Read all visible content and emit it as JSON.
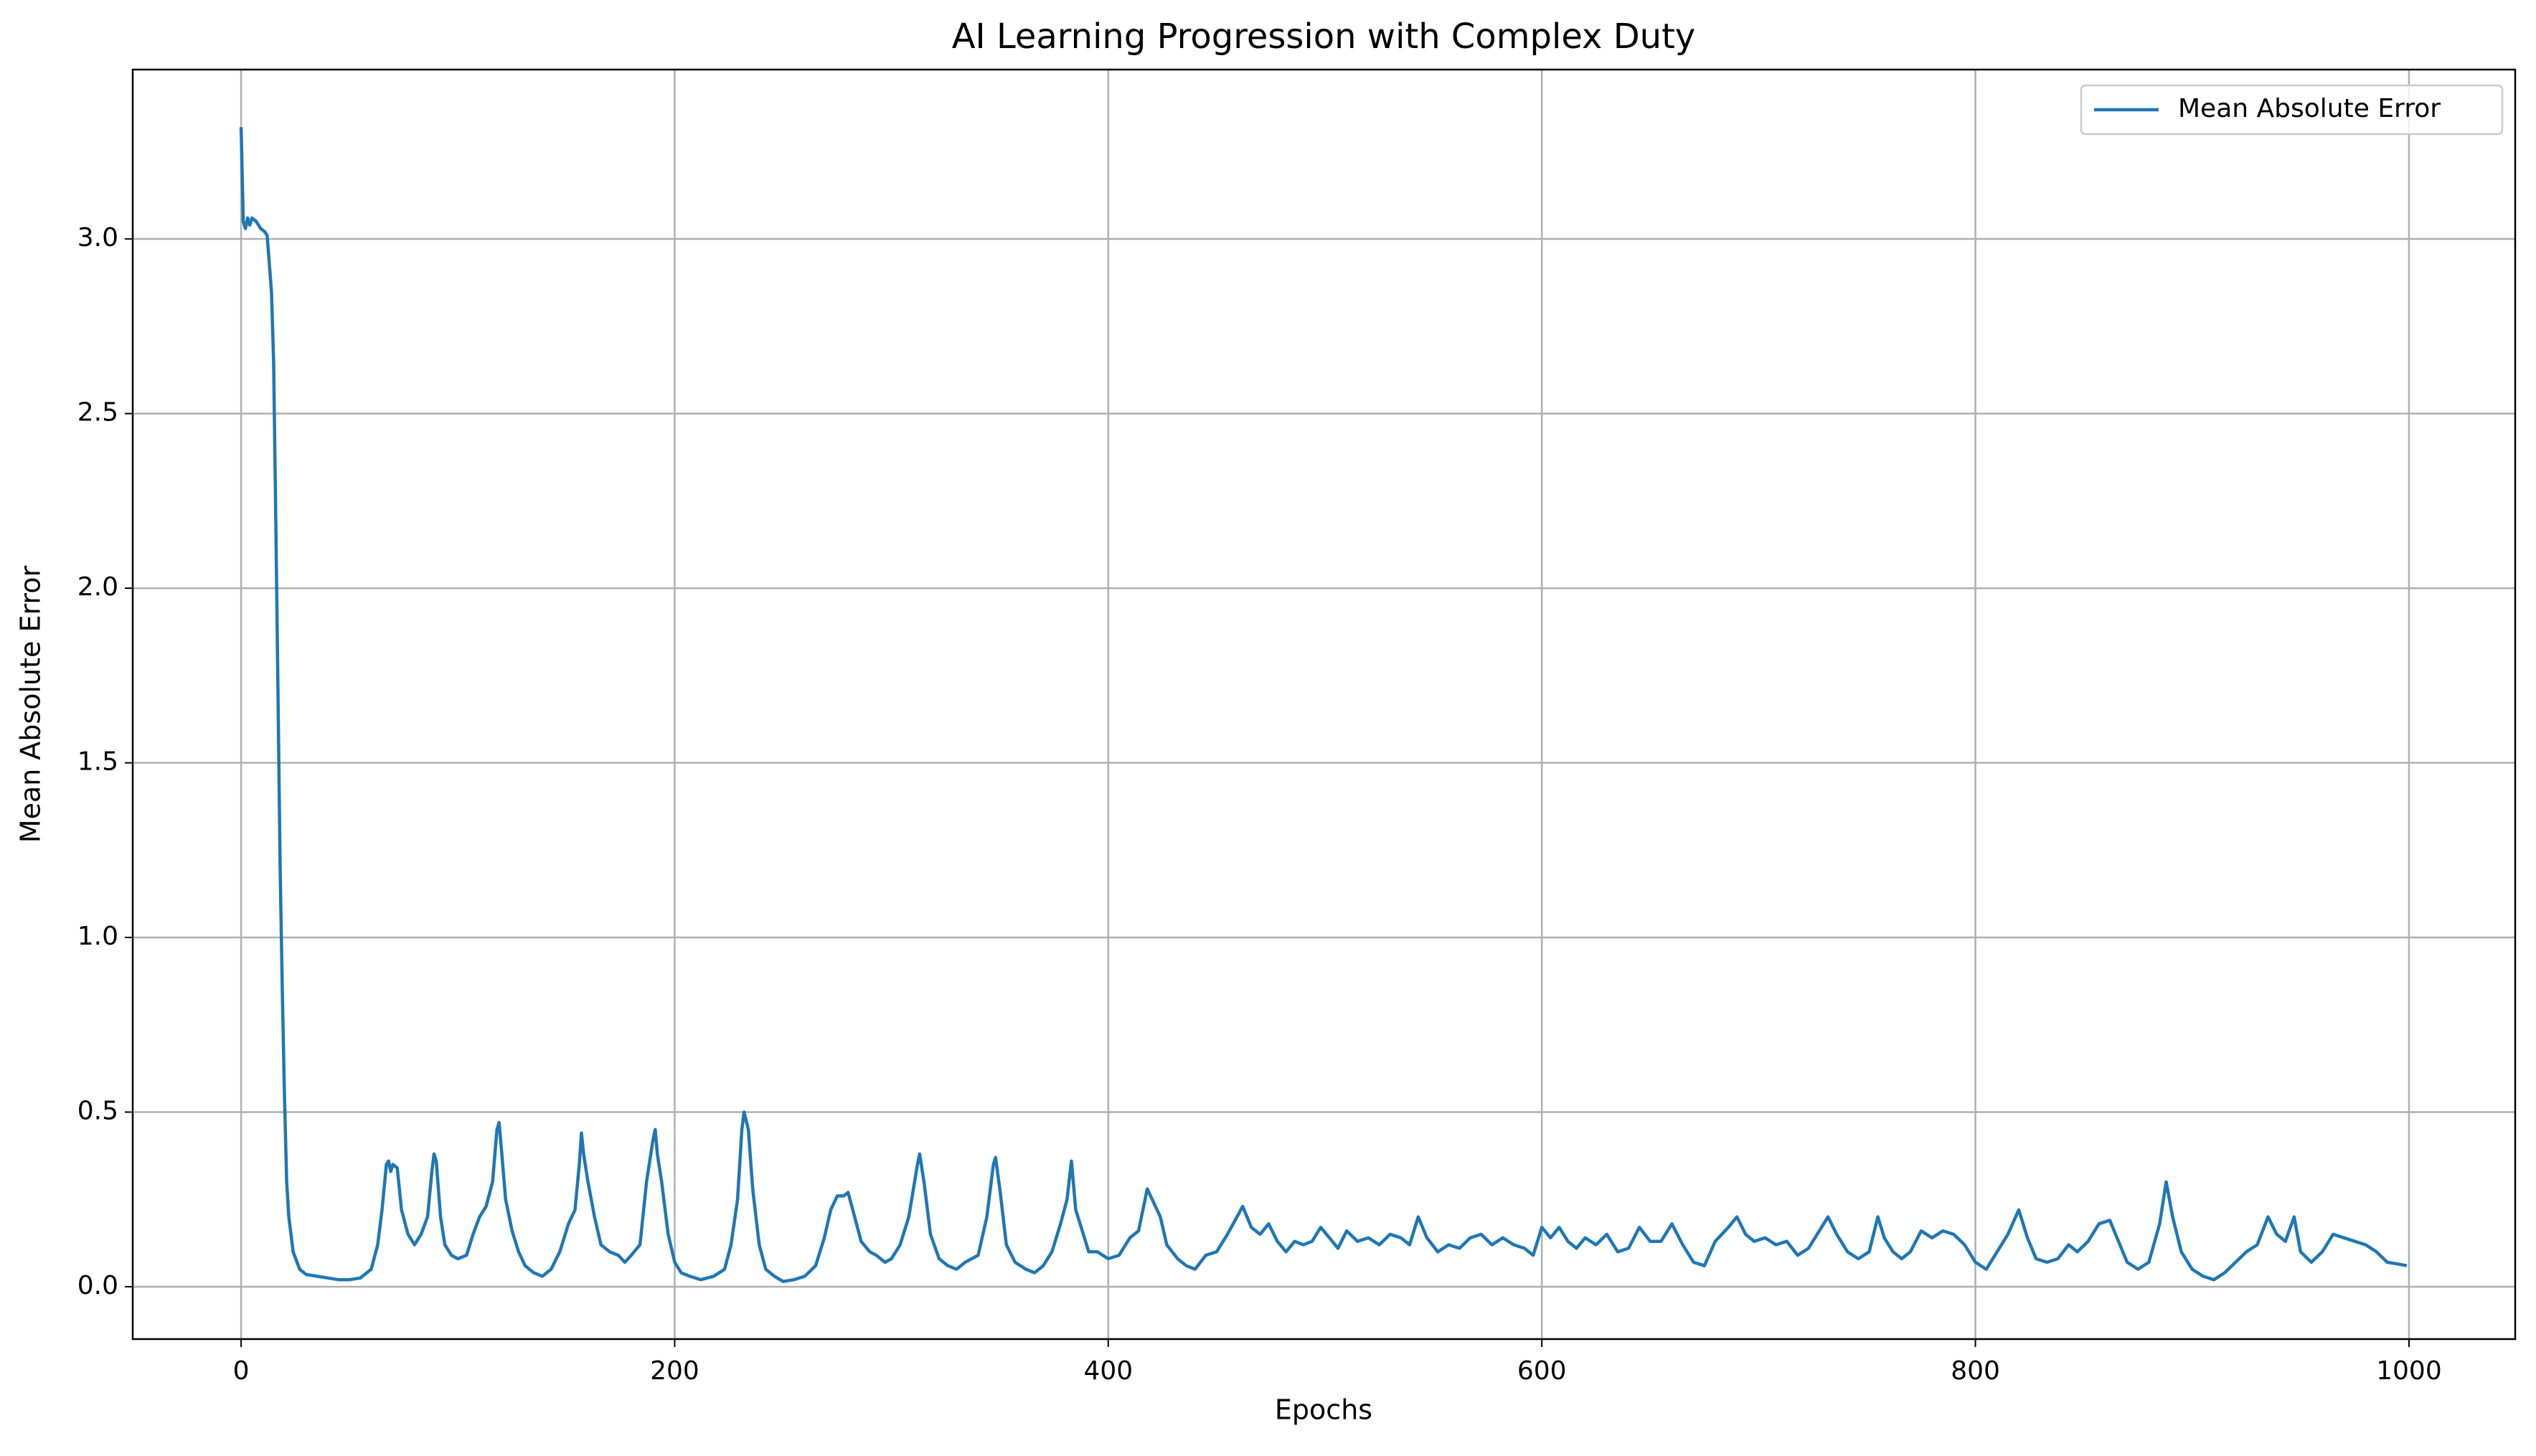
{
  "chart_data": {
    "type": "line",
    "title": "AI Learning Progression with Complex Duty",
    "xlabel": "Epochs",
    "ylabel": "Mean Absolute Error",
    "x": [
      0,
      1,
      2,
      3,
      4,
      5,
      7,
      9,
      11,
      12,
      14,
      15,
      16,
      17,
      18,
      19,
      20,
      21,
      22,
      24,
      27,
      30,
      35,
      40,
      45,
      50,
      55,
      60,
      63,
      65,
      67,
      68,
      69,
      70,
      72,
      74,
      77,
      80,
      83,
      86,
      88,
      89,
      90,
      92,
      94,
      97,
      100,
      104,
      107,
      110,
      113,
      116,
      118,
      119,
      120,
      122,
      125,
      128,
      131,
      135,
      139,
      143,
      147,
      151,
      154,
      156,
      157,
      158,
      160,
      163,
      166,
      170,
      174,
      177,
      180,
      184,
      187,
      189,
      190,
      191,
      192,
      194,
      197,
      200,
      203,
      207,
      212,
      218,
      223,
      226,
      229,
      231,
      232,
      234,
      236,
      239,
      242,
      246,
      250,
      255,
      260,
      265,
      269,
      272,
      275,
      278,
      280,
      283,
      286,
      290,
      293,
      297,
      300,
      304,
      308,
      312,
      313,
      315,
      318,
      322,
      326,
      330,
      334,
      340,
      344,
      347,
      348,
      350,
      353,
      357,
      362,
      366,
      370,
      374,
      378,
      381,
      383,
      385,
      388,
      391,
      395,
      400,
      405,
      410,
      414,
      418,
      421,
      424,
      427,
      432,
      436,
      440,
      445,
      450,
      455,
      462,
      466,
      470,
      474,
      478,
      482,
      486,
      490,
      494,
      498,
      502,
      506,
      510,
      515,
      520,
      525,
      530,
      535,
      539,
      543,
      547,
      552,
      557,
      562,
      567,
      572,
      577,
      582,
      587,
      592,
      596,
      600,
      604,
      608,
      612,
      616,
      620,
      625,
      630,
      635,
      640,
      645,
      650,
      655,
      660,
      665,
      670,
      675,
      680,
      686,
      690,
      694,
      698,
      703,
      708,
      713,
      718,
      723,
      728,
      732,
      736,
      741,
      746,
      751,
      755,
      758,
      762,
      766,
      770,
      775,
      780,
      785,
      790,
      795,
      800,
      805,
      810,
      815,
      820,
      824,
      828,
      833,
      838,
      843,
      847,
      852,
      857,
      862,
      866,
      870,
      875,
      880,
      885,
      888,
      891,
      895,
      900,
      905,
      910,
      915,
      920,
      925,
      930,
      935,
      939,
      943,
      947,
      950,
      955,
      960,
      965,
      970,
      975,
      980,
      985,
      990,
      995,
      999
    ],
    "series": [
      {
        "name": "Mean Absolute Error",
        "color": "#1f77b4",
        "values": [
          3.32,
          3.05,
          3.03,
          3.06,
          3.04,
          3.06,
          3.05,
          3.03,
          3.02,
          3.01,
          2.85,
          2.65,
          2.2,
          1.7,
          1.2,
          0.85,
          0.55,
          0.3,
          0.2,
          0.1,
          0.05,
          0.035,
          0.03,
          0.025,
          0.02,
          0.02,
          0.025,
          0.05,
          0.12,
          0.22,
          0.35,
          0.36,
          0.33,
          0.35,
          0.34,
          0.22,
          0.15,
          0.12,
          0.15,
          0.2,
          0.33,
          0.38,
          0.36,
          0.2,
          0.12,
          0.09,
          0.08,
          0.09,
          0.15,
          0.2,
          0.23,
          0.3,
          0.45,
          0.47,
          0.4,
          0.25,
          0.16,
          0.1,
          0.06,
          0.04,
          0.03,
          0.05,
          0.1,
          0.18,
          0.22,
          0.35,
          0.44,
          0.38,
          0.3,
          0.2,
          0.12,
          0.1,
          0.09,
          0.07,
          0.09,
          0.12,
          0.3,
          0.38,
          0.42,
          0.45,
          0.38,
          0.3,
          0.15,
          0.07,
          0.04,
          0.03,
          0.02,
          0.03,
          0.05,
          0.12,
          0.25,
          0.45,
          0.5,
          0.45,
          0.28,
          0.12,
          0.05,
          0.03,
          0.015,
          0.02,
          0.03,
          0.06,
          0.14,
          0.22,
          0.26,
          0.26,
          0.27,
          0.2,
          0.13,
          0.1,
          0.09,
          0.07,
          0.08,
          0.12,
          0.2,
          0.35,
          0.38,
          0.3,
          0.15,
          0.08,
          0.06,
          0.05,
          0.07,
          0.09,
          0.2,
          0.35,
          0.37,
          0.28,
          0.12,
          0.07,
          0.05,
          0.04,
          0.06,
          0.1,
          0.18,
          0.25,
          0.36,
          0.22,
          0.16,
          0.1,
          0.1,
          0.08,
          0.09,
          0.14,
          0.16,
          0.28,
          0.24,
          0.2,
          0.12,
          0.08,
          0.06,
          0.05,
          0.09,
          0.1,
          0.15,
          0.23,
          0.17,
          0.15,
          0.18,
          0.13,
          0.1,
          0.13,
          0.12,
          0.13,
          0.17,
          0.14,
          0.11,
          0.16,
          0.13,
          0.14,
          0.12,
          0.15,
          0.14,
          0.12,
          0.2,
          0.14,
          0.1,
          0.12,
          0.11,
          0.14,
          0.15,
          0.12,
          0.14,
          0.12,
          0.11,
          0.09,
          0.17,
          0.14,
          0.17,
          0.13,
          0.11,
          0.14,
          0.12,
          0.15,
          0.1,
          0.11,
          0.17,
          0.13,
          0.13,
          0.18,
          0.12,
          0.07,
          0.06,
          0.13,
          0.17,
          0.2,
          0.15,
          0.13,
          0.14,
          0.12,
          0.13,
          0.09,
          0.11,
          0.16,
          0.2,
          0.15,
          0.1,
          0.08,
          0.1,
          0.2,
          0.14,
          0.1,
          0.08,
          0.1,
          0.16,
          0.14,
          0.16,
          0.15,
          0.12,
          0.07,
          0.05,
          0.1,
          0.15,
          0.22,
          0.14,
          0.08,
          0.07,
          0.08,
          0.12,
          0.1,
          0.13,
          0.18,
          0.19,
          0.13,
          0.07,
          0.05,
          0.07,
          0.18,
          0.3,
          0.2,
          0.1,
          0.05,
          0.03,
          0.02,
          0.04,
          0.07,
          0.1,
          0.12,
          0.2,
          0.15,
          0.13,
          0.2,
          0.1,
          0.07,
          0.1,
          0.15,
          0.14,
          0.13,
          0.12,
          0.1,
          0.07,
          0.065,
          0.06
        ]
      }
    ],
    "xlim": [
      -50,
      1049
    ],
    "ylim": [
      -0.15,
      3.485
    ],
    "xticks": [
      0,
      200,
      400,
      600,
      800,
      1000
    ],
    "yticks": [
      {
        "value": 0,
        "label": "0.0"
      },
      0.5,
      {
        "value": 1,
        "label": "1.0"
      },
      1.5,
      {
        "value": 2,
        "label": "2.0"
      },
      2.5,
      {
        "value": 3,
        "label": "3.0"
      }
    ],
    "grid": true,
    "legend": "upper right"
  }
}
